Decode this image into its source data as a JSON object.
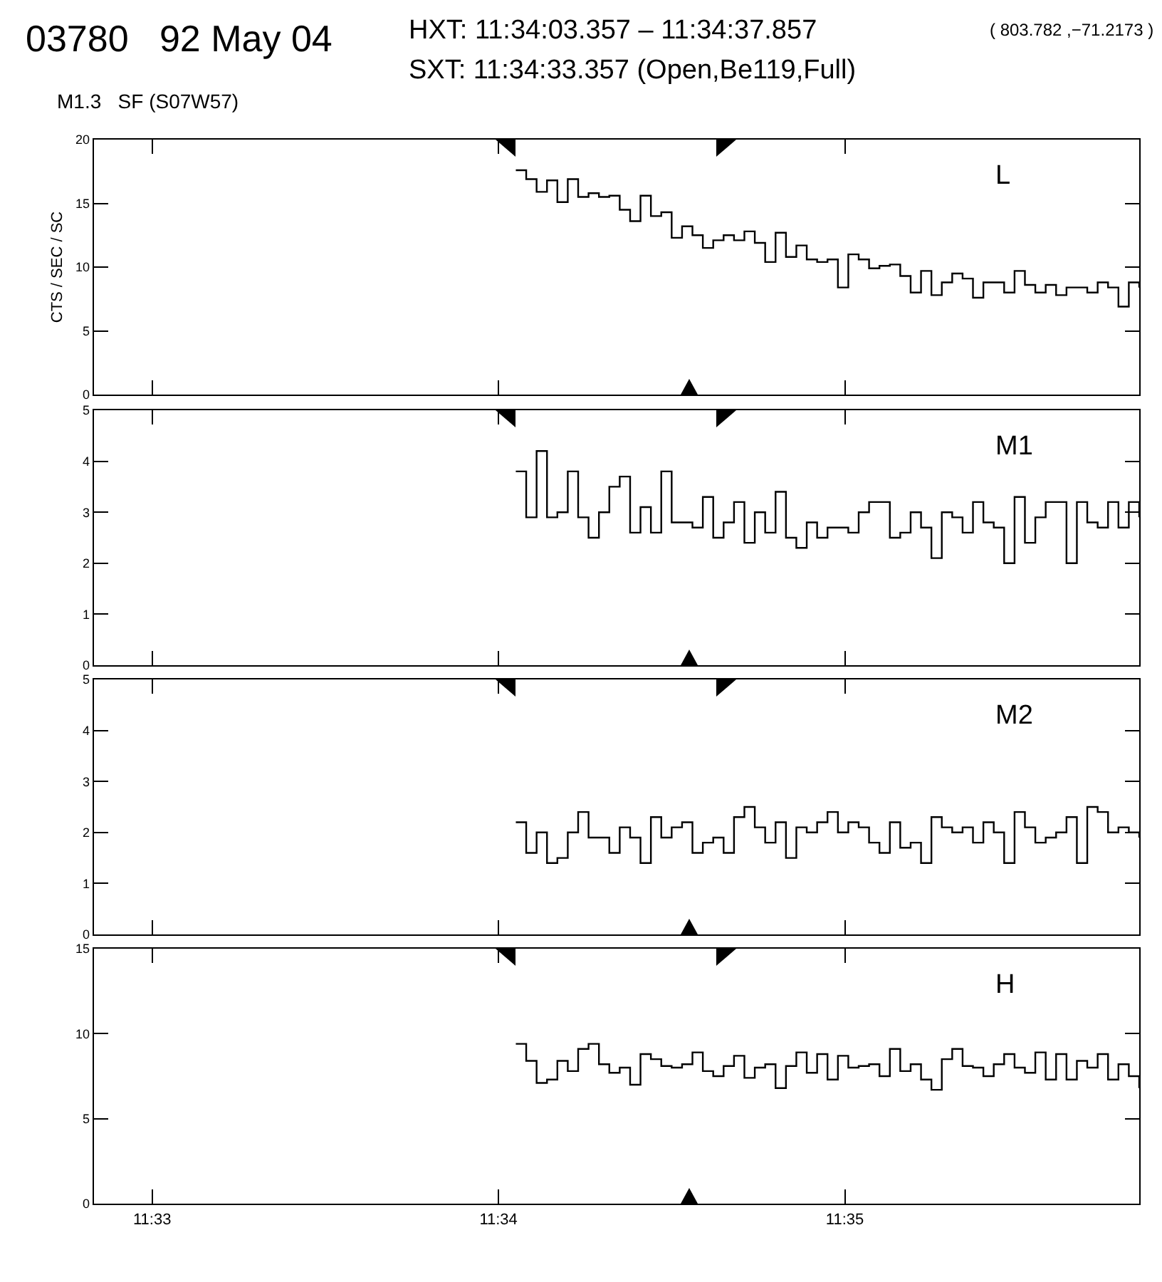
{
  "chart_data": [
    {
      "type": "step",
      "title": "03780   92 May 04",
      "subtitle": "M1.3   SF (S07W57)",
      "ylabel": "CTS / SEC / SC",
      "annotations": [
        "HXT: 11:34:03.357 – 11:34:37.857",
        "( 803.782 ,−71.2173 )",
        "SXT: 11:34:33.357 (Open,Be119,Full)"
      ],
      "x": [
        11.5675,
        11.568,
        11.5685,
        11.569,
        11.5695,
        11.57,
        11.5705,
        11.571,
        11.5715,
        11.572,
        11.5725,
        11.573,
        11.5735,
        11.574,
        11.5745,
        11.575,
        11.5755,
        11.576,
        11.5765,
        11.577,
        11.5775,
        11.578,
        11.5785,
        11.579,
        11.5795,
        11.58,
        11.5805,
        11.581,
        11.5815,
        11.582,
        11.5825,
        11.583,
        11.5835,
        11.584,
        11.5845,
        11.585,
        11.5855,
        11.586,
        11.5865,
        11.587,
        11.5875,
        11.588,
        11.5885,
        11.589,
        11.5895,
        11.59,
        11.5905,
        11.591,
        11.5915,
        11.592,
        11.5925,
        11.593,
        11.5935,
        11.594,
        11.5945,
        11.595,
        11.5955,
        11.596,
        11.5965,
        11.597,
        11.5975
      ],
      "series": [
        {
          "name": "L",
          "color": "#000000",
          "values": [
            17.6,
            16.9,
            15.9,
            16.8,
            15.1,
            16.9,
            15.5,
            15.8,
            15.5,
            15.6,
            14.5,
            13.6,
            15.6,
            14.0,
            14.3,
            12.3,
            13.2,
            12.5,
            11.5,
            12.1,
            12.5,
            12.1,
            12.8,
            11.9,
            10.4,
            12.7,
            10.8,
            11.7,
            10.6,
            10.4,
            10.6,
            8.4,
            11.0,
            10.6,
            9.9,
            10.1,
            10.2,
            9.3,
            8.0,
            9.7,
            7.8,
            8.8,
            9.5,
            9.1,
            7.6,
            8.8,
            8.8,
            8.0,
            9.7,
            8.6,
            8.0,
            8.6,
            7.8,
            8.4,
            8.4,
            8.0,
            8.8,
            8.4,
            6.9,
            8.8,
            8.4
          ]
        }
      ],
      "xlim": [
        11.5472,
        11.5975
      ],
      "xticks": [
        {
          "value": 11.55,
          "label": null
        },
        {
          "value": 11.566667,
          "label": null
        },
        {
          "value": 11.583333,
          "label": null
        }
      ],
      "ylim": [
        0,
        20
      ],
      "yticks": [
        0,
        5,
        10,
        15,
        20
      ],
      "grid": false,
      "legend": false,
      "tick_labels": "y",
      "line_style": "solid",
      "marker": "none"
    },
    {
      "type": "step",
      "x": [
        11.5675,
        11.568,
        11.5685,
        11.569,
        11.5695,
        11.57,
        11.5705,
        11.571,
        11.5715,
        11.572,
        11.5725,
        11.573,
        11.5735,
        11.574,
        11.5745,
        11.575,
        11.5755,
        11.576,
        11.5765,
        11.577,
        11.5775,
        11.578,
        11.5785,
        11.579,
        11.5795,
        11.58,
        11.5805,
        11.581,
        11.5815,
        11.582,
        11.5825,
        11.583,
        11.5835,
        11.584,
        11.5845,
        11.585,
        11.5855,
        11.586,
        11.5865,
        11.587,
        11.5875,
        11.588,
        11.5885,
        11.589,
        11.5895,
        11.59,
        11.5905,
        11.591,
        11.5915,
        11.592,
        11.5925,
        11.593,
        11.5935,
        11.594,
        11.5945,
        11.595,
        11.5955,
        11.596,
        11.5965,
        11.597,
        11.5975
      ],
      "series": [
        {
          "name": "M1",
          "color": "#000000",
          "values": [
            3.8,
            2.9,
            4.2,
            2.9,
            3.0,
            3.8,
            2.9,
            2.5,
            3.0,
            3.5,
            3.7,
            2.6,
            3.1,
            2.6,
            3.8,
            2.8,
            2.8,
            2.7,
            3.3,
            2.5,
            2.8,
            3.2,
            2.4,
            3.0,
            2.6,
            3.4,
            2.5,
            2.3,
            2.8,
            2.5,
            2.7,
            2.7,
            2.6,
            3.0,
            3.2,
            3.2,
            2.5,
            2.6,
            3.0,
            2.7,
            2.1,
            3.0,
            2.9,
            2.6,
            3.2,
            2.8,
            2.7,
            2.0,
            3.3,
            2.4,
            2.9,
            3.2,
            3.2,
            2.0,
            3.2,
            2.8,
            2.7,
            3.2,
            2.7,
            3.2,
            2.9
          ]
        }
      ],
      "xlim": [
        11.5472,
        11.5975
      ],
      "xticks": [
        {
          "value": 11.55,
          "label": null
        },
        {
          "value": 11.566667,
          "label": null
        },
        {
          "value": 11.583333,
          "label": null
        }
      ],
      "ylim": [
        0,
        5
      ],
      "yticks": [
        0,
        1,
        2,
        3,
        4,
        5
      ],
      "grid": false,
      "legend": false,
      "tick_labels": "y",
      "line_style": "solid",
      "marker": "none"
    },
    {
      "type": "step",
      "x": [
        11.5675,
        11.568,
        11.5685,
        11.569,
        11.5695,
        11.57,
        11.5705,
        11.571,
        11.5715,
        11.572,
        11.5725,
        11.573,
        11.5735,
        11.574,
        11.5745,
        11.575,
        11.5755,
        11.576,
        11.5765,
        11.577,
        11.5775,
        11.578,
        11.5785,
        11.579,
        11.5795,
        11.58,
        11.5805,
        11.581,
        11.5815,
        11.582,
        11.5825,
        11.583,
        11.5835,
        11.584,
        11.5845,
        11.585,
        11.5855,
        11.586,
        11.5865,
        11.587,
        11.5875,
        11.588,
        11.5885,
        11.589,
        11.5895,
        11.59,
        11.5905,
        11.591,
        11.5915,
        11.592,
        11.5925,
        11.593,
        11.5935,
        11.594,
        11.5945,
        11.595,
        11.5955,
        11.596,
        11.5965,
        11.597,
        11.5975
      ],
      "series": [
        {
          "name": "M2",
          "color": "#000000",
          "values": [
            2.2,
            1.6,
            2.0,
            1.4,
            1.5,
            2.0,
            2.4,
            1.9,
            1.9,
            1.6,
            2.1,
            1.9,
            1.4,
            2.3,
            1.9,
            2.1,
            2.2,
            1.6,
            1.8,
            1.9,
            1.6,
            2.3,
            2.5,
            2.1,
            1.8,
            2.2,
            1.5,
            2.1,
            2.0,
            2.2,
            2.4,
            2.0,
            2.2,
            2.1,
            1.8,
            1.6,
            2.2,
            1.7,
            1.8,
            1.4,
            2.3,
            2.1,
            2.0,
            2.1,
            1.8,
            2.2,
            2.0,
            1.4,
            2.4,
            2.1,
            1.8,
            1.9,
            2.0,
            2.3,
            1.4,
            2.5,
            2.4,
            2.0,
            2.1,
            2.0,
            1.9
          ]
        }
      ],
      "xlim": [
        11.5472,
        11.5975
      ],
      "xticks": [
        {
          "value": 11.55,
          "label": null
        },
        {
          "value": 11.566667,
          "label": null
        },
        {
          "value": 11.583333,
          "label": null
        }
      ],
      "ylim": [
        0,
        5
      ],
      "yticks": [
        0,
        1,
        2,
        3,
        4,
        5
      ],
      "grid": false,
      "legend": false,
      "tick_labels": "y",
      "line_style": "solid",
      "marker": "none"
    },
    {
      "type": "step",
      "x": [
        11.5675,
        11.568,
        11.5685,
        11.569,
        11.5695,
        11.57,
        11.5705,
        11.571,
        11.5715,
        11.572,
        11.5725,
        11.573,
        11.5735,
        11.574,
        11.5745,
        11.575,
        11.5755,
        11.576,
        11.5765,
        11.577,
        11.5775,
        11.578,
        11.5785,
        11.579,
        11.5795,
        11.58,
        11.5805,
        11.581,
        11.5815,
        11.582,
        11.5825,
        11.583,
        11.5835,
        11.584,
        11.5845,
        11.585,
        11.5855,
        11.586,
        11.5865,
        11.587,
        11.5875,
        11.588,
        11.5885,
        11.589,
        11.5895,
        11.59,
        11.5905,
        11.591,
        11.5915,
        11.592,
        11.5925,
        11.593,
        11.5935,
        11.594,
        11.5945,
        11.595,
        11.5955,
        11.596,
        11.5965,
        11.597,
        11.5975
      ],
      "series": [
        {
          "name": "H",
          "color": "#000000",
          "values": [
            9.4,
            8.4,
            7.1,
            7.3,
            8.4,
            7.8,
            9.1,
            9.4,
            8.2,
            7.7,
            8.0,
            7.0,
            8.8,
            8.5,
            8.1,
            8.0,
            8.2,
            8.9,
            7.8,
            7.5,
            8.1,
            8.7,
            7.4,
            8.0,
            8.2,
            6.8,
            8.1,
            8.9,
            7.7,
            8.8,
            7.3,
            8.7,
            8.0,
            8.1,
            8.2,
            7.5,
            9.1,
            7.8,
            8.2,
            7.3,
            6.7,
            8.5,
            9.1,
            8.1,
            8.0,
            7.5,
            8.2,
            8.8,
            8.0,
            7.7,
            8.9,
            7.3,
            8.8,
            7.3,
            8.4,
            8.0,
            8.8,
            7.3,
            8.2,
            7.5,
            6.8
          ]
        }
      ],
      "xlim": [
        11.5472,
        11.5975
      ],
      "xticks": [
        {
          "value": 11.55,
          "label": "11:33"
        },
        {
          "value": 11.566667,
          "label": "11:34"
        },
        {
          "value": 11.583333,
          "label": "11:35"
        }
      ],
      "ylim": [
        0,
        15
      ],
      "yticks": [
        0,
        5,
        10,
        15
      ],
      "grid": false,
      "legend": false,
      "line_style": "solid",
      "marker": "none"
    }
  ]
}
